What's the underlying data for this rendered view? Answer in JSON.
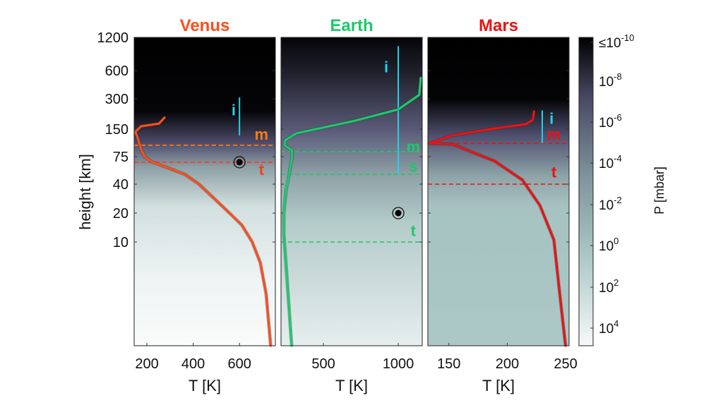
{
  "chart_data": {
    "type": "line",
    "ylabel": "height [km]",
    "y_ticks": [
      1200,
      600,
      300,
      150,
      75,
      40,
      20,
      10
    ],
    "colorbar": {
      "label": "P [mbar]",
      "ticks": [
        "≤10-10",
        "10-8",
        "10-6",
        "10-4",
        "10-2",
        "100",
        "102",
        "104"
      ],
      "tick_base": "10",
      "tick_exponents": [
        "-10",
        "-8",
        "-6",
        "-4",
        "-2",
        "0",
        "2",
        "4"
      ],
      "first_prefix": "≤",
      "colormap": [
        "#f6f8f8",
        "#a9c6c4",
        "#7f949c",
        "#4a4a66",
        "#000000"
      ]
    },
    "panels": [
      {
        "title": "Venus",
        "color": "#ff4d1a",
        "xlabel": "T [K]",
        "xlim": [
          145,
          755
        ],
        "x_ticks": [
          200,
          400,
          600
        ],
        "curve": [
          [
            735,
            0
          ],
          [
            715,
            5
          ],
          [
            690,
            8
          ],
          [
            655,
            10
          ],
          [
            610,
            15
          ],
          [
            557,
            20
          ],
          [
            480,
            30
          ],
          [
            425,
            40
          ],
          [
            365,
            50
          ],
          [
            300,
            57
          ],
          [
            265,
            61
          ],
          [
            220,
            67
          ],
          [
            190,
            75
          ],
          [
            175,
            90
          ],
          [
            170,
            100
          ],
          [
            158,
            125
          ],
          [
            150,
            140
          ],
          [
            175,
            160
          ],
          [
            252,
            170
          ],
          [
            276,
            195
          ]
        ],
        "dashed": [
          {
            "h": 100,
            "color": "#ff7a1a"
          },
          {
            "h": 66,
            "color": "#ff3a1a"
          }
        ],
        "ion_line": {
          "T": 600,
          "h": [
            128,
            310
          ]
        },
        "marker": {
          "T": 600,
          "h": 66
        },
        "labels": [
          {
            "text": "i",
            "color": "#22d3e6",
            "T": 575,
            "h": 230
          },
          {
            "text": "m",
            "color": "#ff7a1a",
            "T": 695,
            "h": 130
          },
          {
            "text": "t",
            "color": "#ff3a1a",
            "T": 695,
            "h": 55
          }
        ]
      },
      {
        "title": "Earth",
        "color": "#1ec86a",
        "xlabel": "T [K]",
        "xlim": [
          217,
          1160
        ],
        "x_ticks": [
          500,
          1000
        ],
        "curve": [
          [
            288,
            0
          ],
          [
            264,
            5
          ],
          [
            245,
            9
          ],
          [
            236,
            12
          ],
          [
            236,
            20
          ],
          [
            250,
            34
          ],
          [
            273,
            52
          ],
          [
            290,
            72
          ],
          [
            290,
            88
          ],
          [
            240,
            100
          ],
          [
            245,
            113
          ],
          [
            320,
            135
          ],
          [
            700,
            180
          ],
          [
            1000,
            235
          ],
          [
            1140,
            330
          ],
          [
            1150,
            500
          ]
        ],
        "dashed": [
          {
            "h": 85,
            "color": "#1ec86a"
          },
          {
            "h": 50,
            "color": "#1ec86a"
          },
          {
            "h": 10,
            "color": "#1ec86a"
          }
        ],
        "ion_line": {
          "T": 1000,
          "h": [
            50,
            1000
          ]
        },
        "marker": {
          "T": 1000,
          "h": 20
        },
        "labels": [
          {
            "text": "i",
            "color": "#22d3e6",
            "T": 920,
            "h": 640
          },
          {
            "text": "m",
            "color": "#1ec86a",
            "T": 1100,
            "h": 95
          },
          {
            "text": "s",
            "color": "#1ec86a",
            "T": 1100,
            "h": 60
          },
          {
            "text": "t",
            "color": "#1ec86a",
            "T": 1100,
            "h": 13
          }
        ]
      },
      {
        "title": "Mars",
        "color": "#ee1111",
        "xlabel": "T [K]",
        "xlim": [
          132,
          253
        ],
        "x_ticks": [
          150,
          200,
          250
        ],
        "curve": [
          [
            250,
            0
          ],
          [
            246,
            4
          ],
          [
            240,
            10.5
          ],
          [
            228,
            24
          ],
          [
            213,
            44
          ],
          [
            189,
            68
          ],
          [
            171,
            83
          ],
          [
            153,
            103
          ],
          [
            133,
            105
          ],
          [
            153,
            128
          ],
          [
            189,
            152
          ],
          [
            216,
            168
          ],
          [
            222,
            185
          ],
          [
            223,
            225
          ]
        ],
        "dashed": [
          {
            "h": 105,
            "color": "#ee1111"
          },
          {
            "h": 40,
            "color": "#ee1111"
          }
        ],
        "ion_line": {
          "T": 230,
          "h": [
            105,
            230
          ]
        },
        "marker": null,
        "labels": [
          {
            "text": "i",
            "color": "#22d3e6",
            "T": 238,
            "h": 190
          },
          {
            "text": "m",
            "color": "#ee1111",
            "T": 240,
            "h": 130
          },
          {
            "text": "t",
            "color": "#ee1111",
            "T": 240,
            "h": 52
          }
        ]
      }
    ]
  }
}
